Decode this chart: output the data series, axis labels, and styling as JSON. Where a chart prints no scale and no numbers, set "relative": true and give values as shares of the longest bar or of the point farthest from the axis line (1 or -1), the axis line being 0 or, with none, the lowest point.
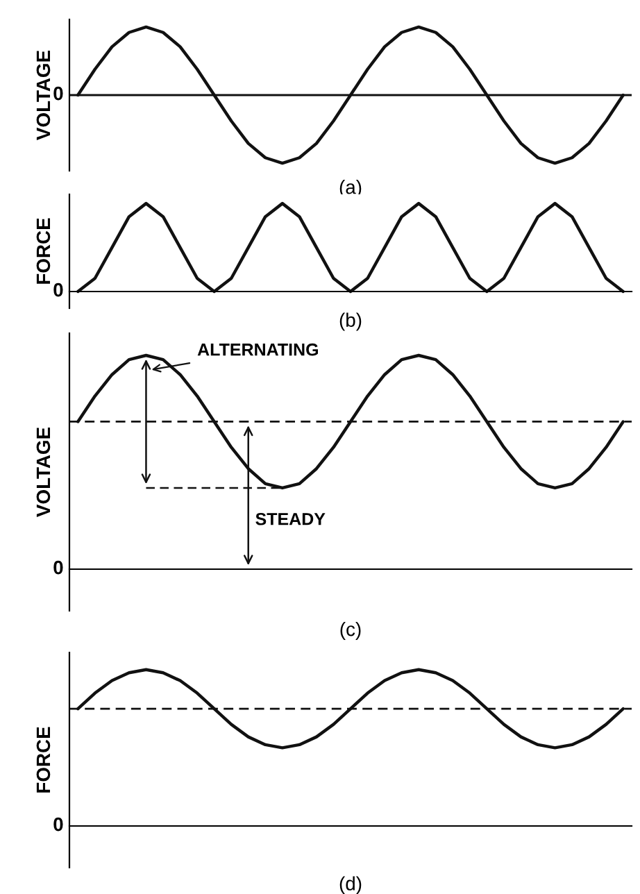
{
  "chart_data": [
    {
      "type": "line",
      "relative": true,
      "ylabel": "VOLTAGE",
      "xlabel": "(a)",
      "annotations": [
        "0"
      ],
      "ref_lines": [
        {
          "axis": "y",
          "value": 0,
          "line_style": "solid",
          "color": "#111111"
        }
      ],
      "categories": [
        null,
        null,
        null,
        null,
        null,
        null,
        null,
        null,
        null,
        null,
        null,
        null,
        null,
        null,
        null,
        null,
        null,
        null,
        null,
        null,
        null,
        null,
        null,
        null,
        null,
        null,
        null,
        null,
        null,
        null,
        null,
        null,
        null
      ],
      "series": [
        {
          "color": "#111111",
          "values": [
            0,
            0.38,
            0.71,
            0.92,
            1,
            0.92,
            0.71,
            0.38,
            0,
            -0.38,
            -0.71,
            -0.92,
            -1,
            -0.92,
            -0.71,
            -0.38,
            0,
            0.38,
            0.71,
            0.92,
            1,
            0.92,
            0.71,
            0.38,
            0,
            -0.38,
            -0.71,
            -0.92,
            -1,
            -0.92,
            -0.71,
            -0.38,
            0
          ]
        }
      ]
    },
    {
      "type": "line",
      "relative": true,
      "ylabel": "FORCE",
      "xlabel": "(b)",
      "annotations": [
        "0"
      ],
      "categories": [
        null,
        null,
        null,
        null,
        null,
        null,
        null,
        null,
        null,
        null,
        null,
        null,
        null,
        null,
        null,
        null,
        null,
        null,
        null,
        null,
        null,
        null,
        null,
        null,
        null,
        null,
        null,
        null,
        null,
        null,
        null,
        null,
        null
      ],
      "series": [
        {
          "color": "#111111",
          "values": [
            0,
            0.15,
            0.5,
            0.85,
            1,
            0.85,
            0.5,
            0.15,
            0,
            0.15,
            0.5,
            0.85,
            1,
            0.85,
            0.5,
            0.15,
            0,
            0.15,
            0.5,
            0.85,
            1,
            0.85,
            0.5,
            0.15,
            0,
            0.15,
            0.5,
            0.85,
            1,
            0.85,
            0.5,
            0.15,
            0
          ]
        }
      ]
    },
    {
      "type": "line",
      "relative": true,
      "ylabel": "VOLTAGE",
      "xlabel": "(c)",
      "annotations": [
        "0",
        "ALTERNATING",
        "STEADY"
      ],
      "ref_lines": [
        {
          "axis": "y",
          "value": 0.69,
          "line_style": "dashed",
          "color": "#111111"
        }
      ],
      "categories": [
        null,
        null,
        null,
        null,
        null,
        null,
        null,
        null,
        null,
        null,
        null,
        null,
        null,
        null,
        null,
        null,
        null,
        null,
        null,
        null,
        null,
        null,
        null,
        null,
        null,
        null,
        null,
        null,
        null,
        null,
        null,
        null,
        null
      ],
      "series": [
        {
          "color": "#111111",
          "values": [
            0.69,
            0.81,
            0.91,
            0.98,
            1,
            0.98,
            0.91,
            0.81,
            0.69,
            0.57,
            0.47,
            0.4,
            0.38,
            0.4,
            0.47,
            0.57,
            0.69,
            0.81,
            0.91,
            0.98,
            1,
            0.98,
            0.91,
            0.81,
            0.69,
            0.57,
            0.47,
            0.4,
            0.38,
            0.4,
            0.47,
            0.57,
            0.69
          ]
        }
      ]
    },
    {
      "type": "line",
      "relative": true,
      "ylabel": "FORCE",
      "xlabel": "(d)",
      "annotations": [
        "0"
      ],
      "ref_lines": [
        {
          "axis": "y",
          "value": 0.75,
          "line_style": "dashed",
          "color": "#111111"
        }
      ],
      "categories": [
        null,
        null,
        null,
        null,
        null,
        null,
        null,
        null,
        null,
        null,
        null,
        null,
        null,
        null,
        null,
        null,
        null,
        null,
        null,
        null,
        null,
        null,
        null,
        null,
        null,
        null,
        null,
        null,
        null,
        null,
        null,
        null,
        null
      ],
      "series": [
        {
          "color": "#111111",
          "values": [
            0.75,
            0.85,
            0.93,
            0.98,
            1,
            0.98,
            0.93,
            0.85,
            0.75,
            0.65,
            0.57,
            0.52,
            0.5,
            0.52,
            0.57,
            0.65,
            0.75,
            0.85,
            0.93,
            0.98,
            1,
            0.98,
            0.93,
            0.85,
            0.75,
            0.65,
            0.57,
            0.52,
            0.5,
            0.52,
            0.57,
            0.65,
            0.75
          ]
        }
      ]
    }
  ]
}
